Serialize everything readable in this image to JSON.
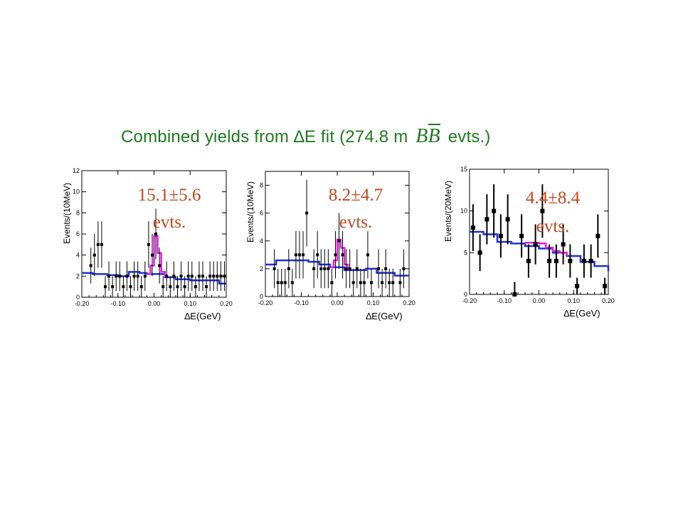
{
  "title": {
    "prefix": "Combined yields from ",
    "delta": "∆",
    "mid": "E fit (274.8 m ",
    "bb": "BB",
    "suffix": " evts.)"
  },
  "colors": {
    "title": "#1e7a1e",
    "yield": "#c0471c",
    "background_fit": "#1f2fd6",
    "signal_fit": "#e020e0",
    "data": "#000000"
  },
  "chart_data": [
    {
      "type": "scatter",
      "ylabel": "Events/(10MeV)",
      "xlabel": "∆E(GeV)",
      "xlim": [
        -0.2,
        0.2
      ],
      "ylim": [
        0,
        12
      ],
      "x_ticks": [
        "-0.20",
        "-0.10",
        "0.00",
        "0.10",
        "0.20"
      ],
      "y_ticks": [
        "0",
        "2",
        "4",
        "6",
        "8",
        "10",
        "12"
      ],
      "yield_line1": "15.1±5.6",
      "yield_line2": "evts.",
      "points": [
        {
          "x": -0.175,
          "y": 3,
          "e": 1.7
        },
        {
          "x": -0.165,
          "y": 4,
          "e": 2
        },
        {
          "x": -0.155,
          "y": 5,
          "e": 2.2
        },
        {
          "x": -0.145,
          "y": 5,
          "e": 2.2
        },
        {
          "x": -0.135,
          "y": 1,
          "e": 1
        },
        {
          "x": -0.125,
          "y": 2,
          "e": 1.4
        },
        {
          "x": -0.115,
          "y": 1,
          "e": 1
        },
        {
          "x": -0.105,
          "y": 2,
          "e": 1.4
        },
        {
          "x": -0.095,
          "y": 2,
          "e": 1.4
        },
        {
          "x": -0.085,
          "y": 1,
          "e": 1
        },
        {
          "x": -0.075,
          "y": 2,
          "e": 1.4
        },
        {
          "x": -0.065,
          "y": 1,
          "e": 1
        },
        {
          "x": -0.055,
          "y": 2,
          "e": 1.4
        },
        {
          "x": -0.045,
          "y": 2,
          "e": 1.4
        },
        {
          "x": -0.035,
          "y": 1,
          "e": 1
        },
        {
          "x": -0.025,
          "y": 2,
          "e": 1.4
        },
        {
          "x": -0.015,
          "y": 5,
          "e": 2.2
        },
        {
          "x": -0.005,
          "y": 4,
          "e": 2
        },
        {
          "x": 0.005,
          "y": 6,
          "e": 2.4
        },
        {
          "x": 0.015,
          "y": 3,
          "e": 1.7
        },
        {
          "x": 0.025,
          "y": 1,
          "e": 1
        },
        {
          "x": 0.035,
          "y": 2,
          "e": 1.4
        },
        {
          "x": 0.045,
          "y": 1,
          "e": 1
        },
        {
          "x": 0.055,
          "y": 2,
          "e": 1.4
        },
        {
          "x": 0.065,
          "y": 1,
          "e": 1
        },
        {
          "x": 0.075,
          "y": 2,
          "e": 1.4
        },
        {
          "x": 0.085,
          "y": 1,
          "e": 1
        },
        {
          "x": 0.095,
          "y": 2,
          "e": 1.4
        },
        {
          "x": 0.105,
          "y": 2,
          "e": 1.4
        },
        {
          "x": 0.115,
          "y": 1,
          "e": 1
        },
        {
          "x": 0.125,
          "y": 2,
          "e": 1.4
        },
        {
          "x": 0.135,
          "y": 2,
          "e": 1.4
        },
        {
          "x": 0.145,
          "y": 1,
          "e": 1
        },
        {
          "x": 0.155,
          "y": 2,
          "e": 1.4
        },
        {
          "x": 0.165,
          "y": 2,
          "e": 1.4
        },
        {
          "x": 0.175,
          "y": 2,
          "e": 1.4
        },
        {
          "x": 0.185,
          "y": 2,
          "e": 1.4
        },
        {
          "x": 0.195,
          "y": 2,
          "e": 1.4
        }
      ],
      "background_fit": [
        [
          -0.2,
          2.3
        ],
        [
          -0.17,
          2.2
        ],
        [
          -0.13,
          2.1
        ],
        [
          -0.1,
          2.0
        ],
        [
          -0.07,
          2.4
        ],
        [
          -0.04,
          2.3
        ],
        [
          -0.02,
          2.2
        ],
        [
          0.03,
          1.9
        ],
        [
          0.06,
          1.7
        ],
        [
          0.1,
          1.6
        ],
        [
          0.14,
          1.6
        ],
        [
          0.18,
          1.3
        ],
        [
          0.2,
          1.3
        ]
      ],
      "signal_fit": [
        [
          -0.02,
          2.2
        ],
        [
          -0.01,
          3.0
        ],
        [
          0.0,
          5.8
        ],
        [
          0.01,
          4.2
        ],
        [
          0.02,
          2.4
        ],
        [
          0.03,
          1.9
        ]
      ]
    },
    {
      "type": "scatter",
      "ylabel": "Events/(10MeV)",
      "xlabel": "∆E(GeV)",
      "xlim": [
        -0.2,
        0.2
      ],
      "ylim": [
        0,
        9
      ],
      "x_ticks": [
        "-0.20",
        "-0.10",
        "0.00",
        "0.10",
        "0.20"
      ],
      "y_ticks": [
        "0",
        "2",
        "4",
        "6",
        "8"
      ],
      "yield_line1": "8.2±4.7",
      "yield_line2": "evts.",
      "points": [
        {
          "x": -0.175,
          "y": 2,
          "e": 1.4
        },
        {
          "x": -0.165,
          "y": 1,
          "e": 1
        },
        {
          "x": -0.155,
          "y": 1,
          "e": 1
        },
        {
          "x": -0.145,
          "y": 1,
          "e": 1
        },
        {
          "x": -0.135,
          "y": 2,
          "e": 1.4
        },
        {
          "x": -0.125,
          "y": 1,
          "e": 1
        },
        {
          "x": -0.115,
          "y": 3,
          "e": 1.7
        },
        {
          "x": -0.105,
          "y": 3,
          "e": 1.7
        },
        {
          "x": -0.095,
          "y": 3,
          "e": 1.7
        },
        {
          "x": -0.085,
          "y": 6,
          "e": 2.4
        },
        {
          "x": -0.065,
          "y": 2,
          "e": 1.4
        },
        {
          "x": -0.055,
          "y": 3,
          "e": 1.7
        },
        {
          "x": -0.045,
          "y": 2,
          "e": 1.4
        },
        {
          "x": -0.035,
          "y": 2,
          "e": 1.4
        },
        {
          "x": -0.025,
          "y": 2,
          "e": 1.4
        },
        {
          "x": -0.015,
          "y": 1,
          "e": 1
        },
        {
          "x": -0.005,
          "y": 3,
          "e": 1.7
        },
        {
          "x": 0.005,
          "y": 4,
          "e": 2
        },
        {
          "x": 0.015,
          "y": 3,
          "e": 1.7
        },
        {
          "x": 0.025,
          "y": 2,
          "e": 1.4
        },
        {
          "x": 0.035,
          "y": 2,
          "e": 1.4
        },
        {
          "x": 0.045,
          "y": 1,
          "e": 1
        },
        {
          "x": 0.055,
          "y": 2,
          "e": 1.4
        },
        {
          "x": 0.065,
          "y": 1,
          "e": 1
        },
        {
          "x": 0.075,
          "y": 1,
          "e": 1
        },
        {
          "x": 0.085,
          "y": 3,
          "e": 1.7
        },
        {
          "x": 0.095,
          "y": 1,
          "e": 1
        },
        {
          "x": 0.115,
          "y": 2,
          "e": 1.4
        },
        {
          "x": 0.125,
          "y": 1,
          "e": 1
        },
        {
          "x": 0.135,
          "y": 2,
          "e": 1.4
        },
        {
          "x": 0.145,
          "y": 1,
          "e": 1
        },
        {
          "x": 0.155,
          "y": 1,
          "e": 1
        },
        {
          "x": 0.175,
          "y": 1,
          "e": 1
        },
        {
          "x": 0.185,
          "y": 2,
          "e": 1.4
        }
      ],
      "background_fit": [
        [
          -0.2,
          2.3
        ],
        [
          -0.17,
          2.6
        ],
        [
          -0.12,
          2.6
        ],
        [
          -0.08,
          2.5
        ],
        [
          -0.05,
          2.3
        ],
        [
          -0.02,
          2.1
        ],
        [
          0.02,
          1.9
        ],
        [
          0.05,
          1.9
        ],
        [
          0.08,
          2.0
        ],
        [
          0.11,
          1.7
        ],
        [
          0.13,
          1.7
        ],
        [
          0.16,
          1.5
        ],
        [
          0.2,
          1.5
        ]
      ],
      "signal_fit": [
        [
          -0.02,
          2.1
        ],
        [
          -0.01,
          2.6
        ],
        [
          0.0,
          4.1
        ],
        [
          0.01,
          3.5
        ],
        [
          0.02,
          2.3
        ],
        [
          0.03,
          1.9
        ]
      ]
    },
    {
      "type": "scatter",
      "ylabel": "Events/(20MeV)",
      "xlabel": "∆E(GeV)",
      "xlim": [
        -0.2,
        0.2
      ],
      "ylim": [
        0,
        15
      ],
      "x_ticks": [
        "-0.20",
        "-0.10",
        "0.00",
        "0.10",
        "0.20"
      ],
      "y_ticks": [
        "0",
        "5",
        "10",
        "15"
      ],
      "yield_line1": "4.4±8.4",
      "yield_line2": "evts.",
      "points": [
        {
          "x": -0.19,
          "y": 8,
          "e": 2.8
        },
        {
          "x": -0.17,
          "y": 5,
          "e": 2.2
        },
        {
          "x": -0.15,
          "y": 9,
          "e": 3
        },
        {
          "x": -0.13,
          "y": 10,
          "e": 3.2
        },
        {
          "x": -0.11,
          "y": 7,
          "e": 2.6
        },
        {
          "x": -0.09,
          "y": 9,
          "e": 3
        },
        {
          "x": -0.07,
          "y": 0,
          "e": 1.5
        },
        {
          "x": -0.05,
          "y": 7,
          "e": 2.6
        },
        {
          "x": -0.03,
          "y": 4,
          "e": 2
        },
        {
          "x": -0.01,
          "y": 6,
          "e": 2.4
        },
        {
          "x": 0.01,
          "y": 10,
          "e": 3.2
        },
        {
          "x": 0.03,
          "y": 4,
          "e": 2
        },
        {
          "x": 0.05,
          "y": 4,
          "e": 2
        },
        {
          "x": 0.07,
          "y": 6,
          "e": 2.4
        },
        {
          "x": 0.09,
          "y": 4,
          "e": 2
        },
        {
          "x": 0.11,
          "y": 1,
          "e": 1
        },
        {
          "x": 0.13,
          "y": 4,
          "e": 2
        },
        {
          "x": 0.15,
          "y": 4,
          "e": 2
        },
        {
          "x": 0.17,
          "y": 7,
          "e": 2.6
        },
        {
          "x": 0.19,
          "y": 1,
          "e": 1
        }
      ],
      "background_fit": [
        [
          -0.2,
          7.5
        ],
        [
          -0.16,
          7.2
        ],
        [
          -0.12,
          6.3
        ],
        [
          -0.08,
          6.1
        ],
        [
          -0.04,
          5.8
        ],
        [
          0.0,
          5.5
        ],
        [
          0.04,
          5.0
        ],
        [
          0.08,
          4.6
        ],
        [
          0.12,
          3.9
        ],
        [
          0.16,
          3.4
        ],
        [
          0.2,
          2.8
        ]
      ],
      "signal_fit": [
        [
          -0.04,
          6.2
        ],
        [
          -0.02,
          6.2
        ],
        [
          0.0,
          6.1
        ],
        [
          0.02,
          5.6
        ],
        [
          0.04,
          5.2
        ],
        [
          0.06,
          5.0
        ],
        [
          0.08,
          4.6
        ]
      ]
    }
  ]
}
